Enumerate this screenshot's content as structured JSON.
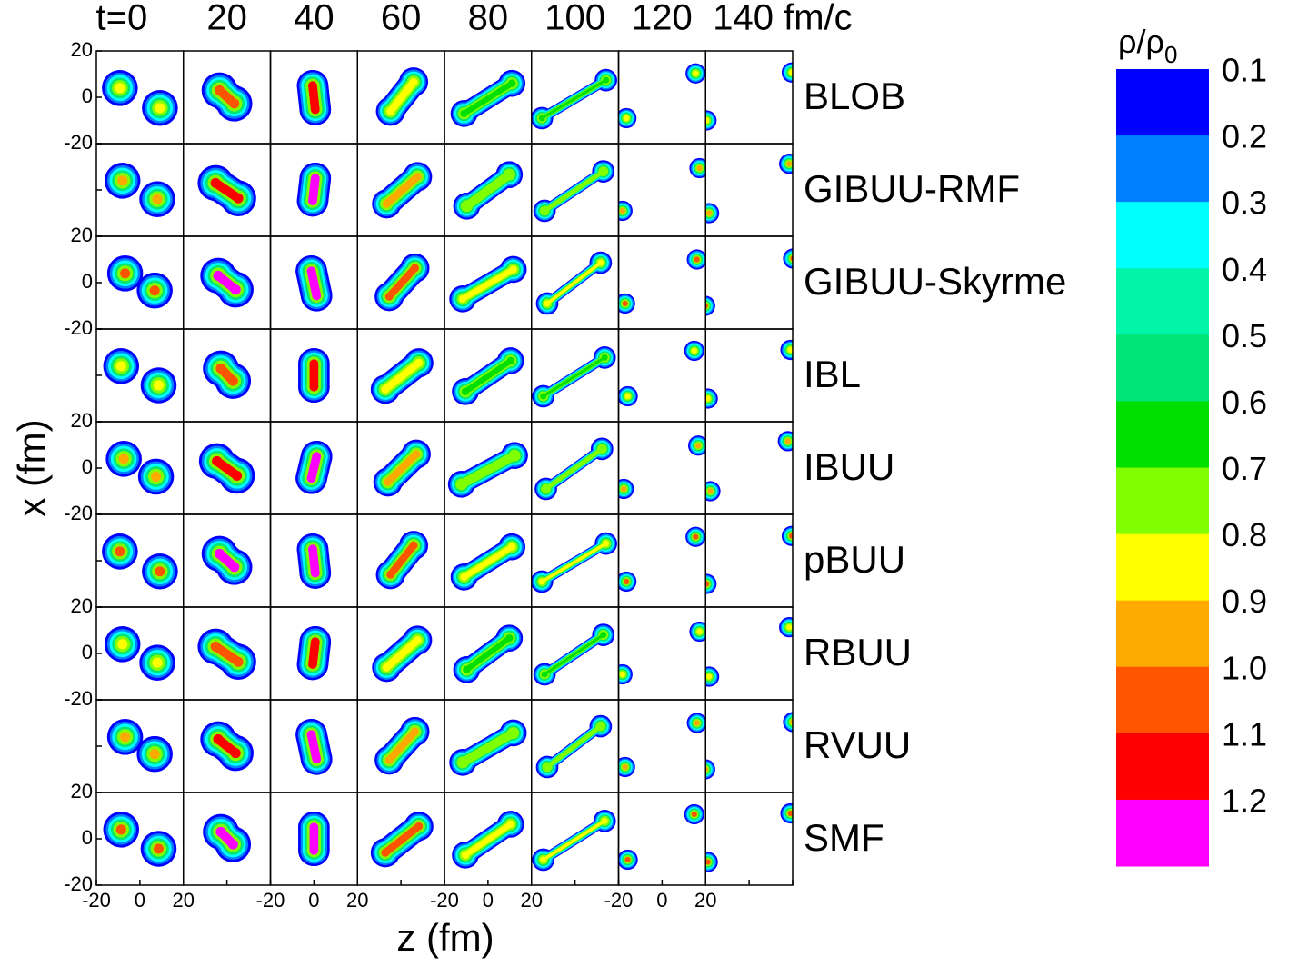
{
  "chart_data": {
    "type": "contour-grid",
    "column_labels": [
      "t=0",
      "20",
      "40",
      "60",
      "80",
      "100",
      "120",
      "140 fm/c"
    ],
    "row_labels": [
      "BLOB",
      "GIBUU-RMF",
      "GIBUU-Skyrme",
      "IBL",
      "IBUU",
      "pBUU",
      "RBUU",
      "RVUU",
      "SMF"
    ],
    "xlabel": "z (fm)",
    "ylabel": "x (fm)",
    "xlim": [
      -20,
      20
    ],
    "ylim": [
      -20,
      20
    ],
    "xticks": [
      -20,
      0,
      20
    ],
    "yticks": [
      20,
      0,
      -20
    ],
    "colorbar": {
      "label": "ρ/ρ",
      "label_subscript": "0",
      "levels": [
        0.1,
        0.2,
        0.3,
        0.4,
        0.5,
        0.6,
        0.7,
        0.8,
        0.9,
        {
          "value": 1,
          "label": "1.0"
        },
        1.1,
        1.2
      ],
      "colors": [
        "#0000ff",
        "#0080ff",
        "#00ffff",
        "#00f5a8",
        "#00e676",
        "#00e000",
        "#80ff00",
        "#ffff00",
        "#ffaa00",
        "#ff5500",
        "#ff0000",
        "#ff00ff"
      ]
    }
  }
}
